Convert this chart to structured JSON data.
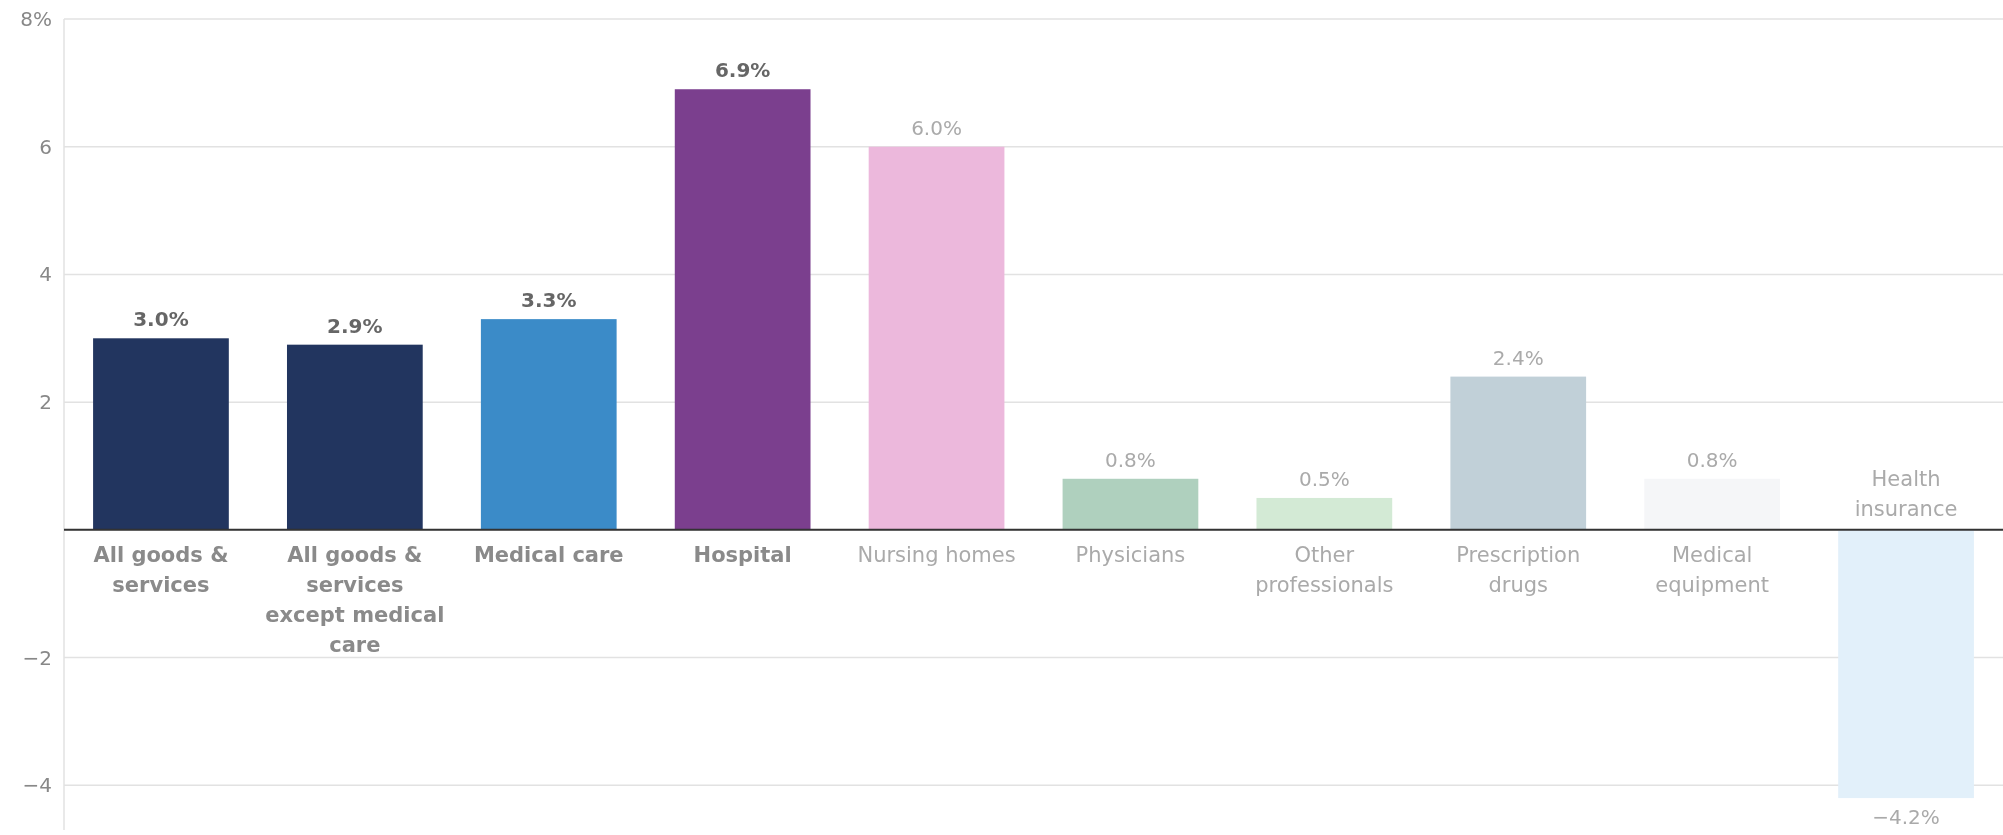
{
  "chart_data": {
    "type": "bar",
    "categories": [
      "All goods & services",
      "All goods & services except medical care",
      "Medical care",
      "Hospital",
      "Nursing homes",
      "Physicians",
      "Other professionals",
      "Prescription drugs",
      "Medical equipment",
      "Health insurance"
    ],
    "values": [
      3.0,
      2.9,
      3.3,
      6.9,
      6.0,
      0.8,
      0.5,
      2.4,
      0.8,
      -4.2
    ],
    "colors": [
      "#22355f",
      "#22355f",
      "#3b8bc8",
      "#7b3f8e",
      "#ecb8dc",
      "#afd0be",
      "#d3ead5",
      "#c1d0d8",
      "#f5f6f8",
      "#e2f0fa"
    ],
    "value_labels": [
      "3.0%",
      "2.9%",
      "3.3%",
      "6.9%",
      "6.0%",
      "0.8%",
      "0.5%",
      "2.4%",
      "0.8%",
      "−4.2%"
    ],
    "ylim": [
      -4.7,
      8
    ],
    "yticks": [
      {
        "value": 8,
        "label": "8%"
      },
      6,
      4,
      2,
      {
        "value": 0,
        "label": null
      },
      {
        "value": -2,
        "label": "−2"
      },
      {
        "value": -4,
        "label": "−4"
      }
    ],
    "grid": "y"
  }
}
